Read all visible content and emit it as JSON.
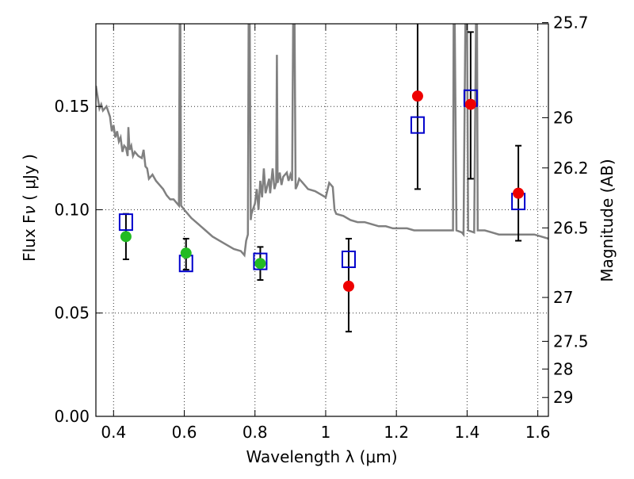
{
  "chart_data": {
    "type": "scatter",
    "title": "",
    "xlabel": "Wavelength  λ (μm)",
    "ylabel_left": "Flux  F",
    "ylabel_left_sub": "ν",
    "ylabel_left_unit": " ( μJy )",
    "ylabel_right": "Magnitude (AB)",
    "xlim": [
      0.35,
      1.63
    ],
    "ylim": [
      0.0,
      0.19
    ],
    "grid": true,
    "legend": "none",
    "x_ticks": [
      {
        "value": 0.4,
        "label": "0.4"
      },
      {
        "value": 0.6,
        "label": "0.6"
      },
      {
        "value": 0.8,
        "label": "0.8"
      },
      {
        "value": 1.0,
        "label": "1"
      },
      {
        "value": 1.2,
        "label": "1.2"
      },
      {
        "value": 1.4,
        "label": "1.4"
      },
      {
        "value": 1.6,
        "label": "1.6"
      }
    ],
    "y_ticks": [
      {
        "value": 0.0,
        "label": "0.00"
      },
      {
        "value": 0.05,
        "label": "0.05"
      },
      {
        "value": 0.1,
        "label": "0.10"
      },
      {
        "value": 0.15,
        "label": "0.15"
      }
    ],
    "right_ticks": [
      {
        "value": 25.7,
        "label": "25.7"
      },
      {
        "value": 26.0,
        "label": "26"
      },
      {
        "value": 26.2,
        "label": "26.2"
      },
      {
        "value": 26.5,
        "label": "26.5"
      },
      {
        "value": 27.0,
        "label": "27"
      },
      {
        "value": 27.5,
        "label": "27.5"
      },
      {
        "value": 28.0,
        "label": "28"
      },
      {
        "value": 29.0,
        "label": "29"
      }
    ],
    "colors": {
      "template": "#808080",
      "model_box": "#0000cc",
      "green_point": "#22bb22",
      "red_point": "#ee0000",
      "errorbar": "#000000"
    },
    "model_boxes": [
      {
        "x": 0.435,
        "y": 0.094
      },
      {
        "x": 0.605,
        "y": 0.074
      },
      {
        "x": 0.815,
        "y": 0.075
      },
      {
        "x": 1.065,
        "y": 0.076
      },
      {
        "x": 1.26,
        "y": 0.141
      },
      {
        "x": 1.41,
        "y": 0.154
      },
      {
        "x": 1.545,
        "y": 0.104
      }
    ],
    "observed_green": [
      {
        "x": 0.435,
        "y": 0.087,
        "err_lo": 0.076,
        "err_hi": 0.098
      },
      {
        "x": 0.605,
        "y": 0.079,
        "err_lo": 0.071,
        "err_hi": 0.086
      },
      {
        "x": 0.815,
        "y": 0.074,
        "err_lo": 0.066,
        "err_hi": 0.082
      }
    ],
    "observed_red": [
      {
        "x": 1.065,
        "y": 0.063,
        "err_lo": 0.041,
        "err_hi": 0.086
      },
      {
        "x": 1.26,
        "y": 0.155,
        "err_lo": 0.11,
        "err_hi": 0.19
      },
      {
        "x": 1.41,
        "y": 0.151,
        "err_lo": 0.115,
        "err_hi": 0.186
      },
      {
        "x": 1.545,
        "y": 0.108,
        "err_lo": 0.085,
        "err_hi": 0.131
      }
    ],
    "template_spectrum": [
      [
        0.35,
        0.16
      ],
      [
        0.36,
        0.149
      ],
      [
        0.365,
        0.151
      ],
      [
        0.37,
        0.148
      ],
      [
        0.38,
        0.15
      ],
      [
        0.39,
        0.145
      ],
      [
        0.395,
        0.138
      ],
      [
        0.4,
        0.141
      ],
      [
        0.405,
        0.135
      ],
      [
        0.41,
        0.138
      ],
      [
        0.415,
        0.133
      ],
      [
        0.42,
        0.135
      ],
      [
        0.425,
        0.128
      ],
      [
        0.43,
        0.131
      ],
      [
        0.435,
        0.13
      ],
      [
        0.44,
        0.126
      ],
      [
        0.442,
        0.14
      ],
      [
        0.445,
        0.129
      ],
      [
        0.45,
        0.131
      ],
      [
        0.455,
        0.126
      ],
      [
        0.46,
        0.128
      ],
      [
        0.47,
        0.126
      ],
      [
        0.48,
        0.125
      ],
      [
        0.485,
        0.129
      ],
      [
        0.49,
        0.121
      ],
      [
        0.495,
        0.12
      ],
      [
        0.5,
        0.115
      ],
      [
        0.51,
        0.117
      ],
      [
        0.52,
        0.114
      ],
      [
        0.53,
        0.112
      ],
      [
        0.54,
        0.11
      ],
      [
        0.55,
        0.107
      ],
      [
        0.56,
        0.105
      ],
      [
        0.57,
        0.105
      ],
      [
        0.58,
        0.103
      ],
      [
        0.585,
        0.102
      ],
      [
        0.587,
        0.19
      ],
      [
        0.589,
        0.19
      ],
      [
        0.591,
        0.102
      ],
      [
        0.6,
        0.1
      ],
      [
        0.62,
        0.096
      ],
      [
        0.64,
        0.093
      ],
      [
        0.66,
        0.09
      ],
      [
        0.68,
        0.087
      ],
      [
        0.7,
        0.085
      ],
      [
        0.72,
        0.083
      ],
      [
        0.74,
        0.081
      ],
      [
        0.76,
        0.08
      ],
      [
        0.77,
        0.078
      ],
      [
        0.775,
        0.085
      ],
      [
        0.78,
        0.088
      ],
      [
        0.782,
        0.19
      ],
      [
        0.785,
        0.19
      ],
      [
        0.788,
        0.095
      ],
      [
        0.79,
        0.098
      ],
      [
        0.8,
        0.103
      ],
      [
        0.805,
        0.11
      ],
      [
        0.81,
        0.1
      ],
      [
        0.815,
        0.114
      ],
      [
        0.82,
        0.106
      ],
      [
        0.825,
        0.12
      ],
      [
        0.83,
        0.108
      ],
      [
        0.84,
        0.115
      ],
      [
        0.843,
        0.108
      ],
      [
        0.85,
        0.12
      ],
      [
        0.855,
        0.11
      ],
      [
        0.86,
        0.113
      ],
      [
        0.862,
        0.175
      ],
      [
        0.864,
        0.113
      ],
      [
        0.87,
        0.118
      ],
      [
        0.875,
        0.112
      ],
      [
        0.88,
        0.116
      ],
      [
        0.89,
        0.118
      ],
      [
        0.895,
        0.114
      ],
      [
        0.9,
        0.117
      ],
      [
        0.905,
        0.114
      ],
      [
        0.908,
        0.19
      ],
      [
        0.912,
        0.19
      ],
      [
        0.915,
        0.11
      ],
      [
        0.92,
        0.112
      ],
      [
        0.925,
        0.115
      ],
      [
        0.935,
        0.113
      ],
      [
        0.95,
        0.11
      ],
      [
        0.97,
        0.109
      ],
      [
        0.99,
        0.107
      ],
      [
        1.0,
        0.106
      ],
      [
        1.01,
        0.113
      ],
      [
        1.02,
        0.111
      ],
      [
        1.025,
        0.1
      ],
      [
        1.03,
        0.098
      ],
      [
        1.05,
        0.097
      ],
      [
        1.07,
        0.095
      ],
      [
        1.09,
        0.094
      ],
      [
        1.11,
        0.094
      ],
      [
        1.13,
        0.093
      ],
      [
        1.15,
        0.092
      ],
      [
        1.17,
        0.092
      ],
      [
        1.19,
        0.091
      ],
      [
        1.21,
        0.091
      ],
      [
        1.23,
        0.091
      ],
      [
        1.25,
        0.09
      ],
      [
        1.27,
        0.09
      ],
      [
        1.29,
        0.09
      ],
      [
        1.31,
        0.09
      ],
      [
        1.33,
        0.09
      ],
      [
        1.35,
        0.09
      ],
      [
        1.36,
        0.09
      ],
      [
        1.362,
        0.19
      ],
      [
        1.365,
        0.19
      ],
      [
        1.37,
        0.09
      ],
      [
        1.385,
        0.089
      ],
      [
        1.39,
        0.088
      ],
      [
        1.395,
        0.19
      ],
      [
        1.4,
        0.19
      ],
      [
        1.403,
        0.09
      ],
      [
        1.42,
        0.089
      ],
      [
        1.425,
        0.19
      ],
      [
        1.428,
        0.19
      ],
      [
        1.43,
        0.09
      ],
      [
        1.45,
        0.09
      ],
      [
        1.47,
        0.089
      ],
      [
        1.49,
        0.088
      ],
      [
        1.51,
        0.088
      ],
      [
        1.53,
        0.088
      ],
      [
        1.55,
        0.088
      ],
      [
        1.57,
        0.088
      ],
      [
        1.59,
        0.088
      ],
      [
        1.61,
        0.087
      ],
      [
        1.63,
        0.086
      ]
    ]
  }
}
